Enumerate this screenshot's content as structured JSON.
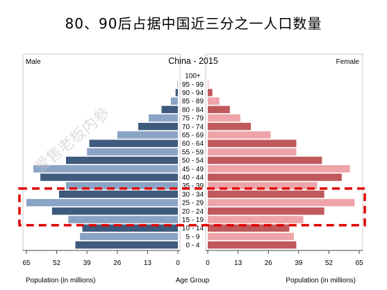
{
  "headline": "80、90后占据中国近三分之一人口数量",
  "watermark": "爱售老板内参",
  "chart_data": {
    "type": "bar",
    "title": "China - 2015",
    "left_label": "Male",
    "right_label": "Female",
    "xlabel_left": "Population (in millions)",
    "xlabel_center": "Age Group",
    "xlabel_right": "Population (in millions)",
    "xlim": [
      0,
      65
    ],
    "ticks_left": [
      "65",
      "52",
      "39",
      "26",
      "13",
      "0"
    ],
    "ticks_right": [
      "0",
      "13",
      "26",
      "39",
      "52",
      "65"
    ],
    "categories": [
      "100+",
      "95 - 99",
      "90 - 94",
      "85 - 89",
      "80 - 84",
      "75 - 79",
      "70 - 74",
      "65 - 69",
      "60 - 64",
      "55 - 59",
      "50 - 54",
      "45 - 49",
      "40 - 44",
      "35 - 39",
      "30 - 34",
      "25 - 29",
      "20 - 24",
      "15 - 19",
      "10 - 14",
      "5 - 9",
      "0 - 4"
    ],
    "series": [
      {
        "name": "Male",
        "values": [
          0,
          0.2,
          1,
          3,
          7,
          12.5,
          17,
          26,
          38,
          39,
          48,
          62,
          59,
          48,
          51,
          65,
          54,
          47,
          41,
          42,
          44
        ]
      },
      {
        "name": "Female",
        "values": [
          0,
          0.3,
          2,
          5,
          9.5,
          14,
          18.5,
          27,
          38,
          38,
          49,
          61,
          57.5,
          47,
          50,
          63,
          50,
          41,
          35,
          37,
          38
        ]
      }
    ],
    "colors": {
      "male_dark": "#3e5a7d",
      "male_light": "#8aa4c6",
      "female_dark": "#c0595c",
      "female_light": "#eea4a8"
    },
    "highlight": {
      "from": "15 - 19",
      "to": "30 - 34",
      "color": "#e00000"
    }
  }
}
